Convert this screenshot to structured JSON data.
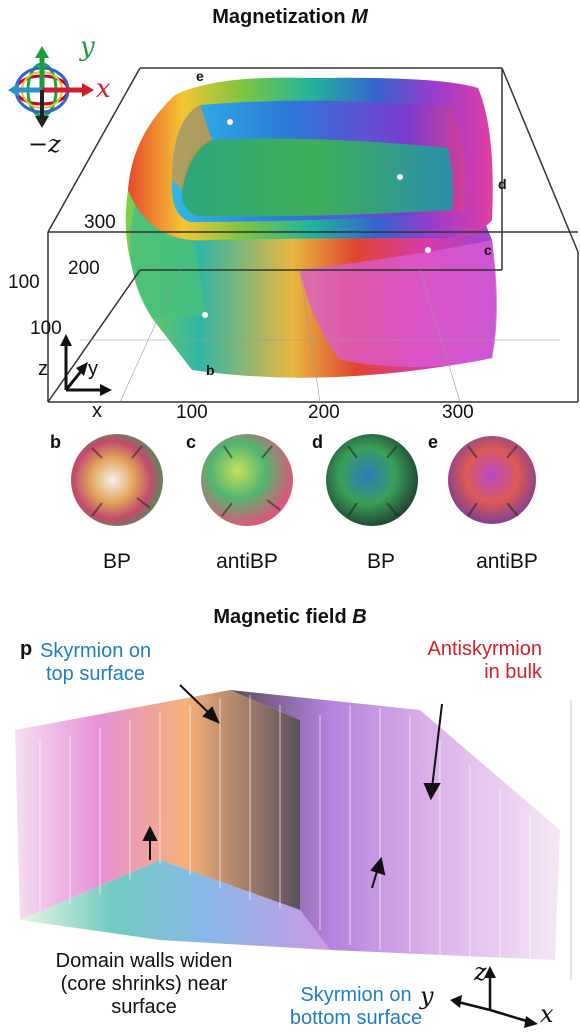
{
  "top": {
    "title_prefix": "Magnetization ",
    "title_symbol": "M",
    "axis_glyph": {
      "y": "y",
      "x": "x",
      "neg_z": "−z"
    },
    "corner_labels": {
      "e": "e",
      "d": "d",
      "c": "c",
      "b": "b"
    },
    "z_axis_ticks": [
      "300",
      "200",
      "100",
      "100"
    ],
    "x_axis_ticks": [
      "100",
      "200",
      "300"
    ],
    "frame_axes": {
      "z": "z",
      "y": "y",
      "x": "x"
    }
  },
  "spheres": [
    {
      "letter": "b",
      "label": "BP"
    },
    {
      "letter": "c",
      "label": "antiBP"
    },
    {
      "letter": "d",
      "label": "BP"
    },
    {
      "letter": "e",
      "label": "antiBP"
    }
  ],
  "bottom": {
    "title_prefix": "Magnetic field ",
    "title_symbol": "B",
    "panel_letter": "p",
    "skyrmion_top": [
      "Skyrmion on",
      "top surface"
    ],
    "antiskyrmion": [
      "Antiskyrmion",
      "in bulk"
    ],
    "domain_walls": [
      "Domain walls widen",
      "(core shrinks) near",
      "surface"
    ],
    "skyrmion_bottom": [
      "Skyrmion on",
      "bottom surface"
    ],
    "frame_axes": {
      "z": "z",
      "y": "y",
      "x": "x"
    }
  },
  "colors": {
    "blue_label": "#1f7ec1",
    "red_label": "#d0202a"
  }
}
